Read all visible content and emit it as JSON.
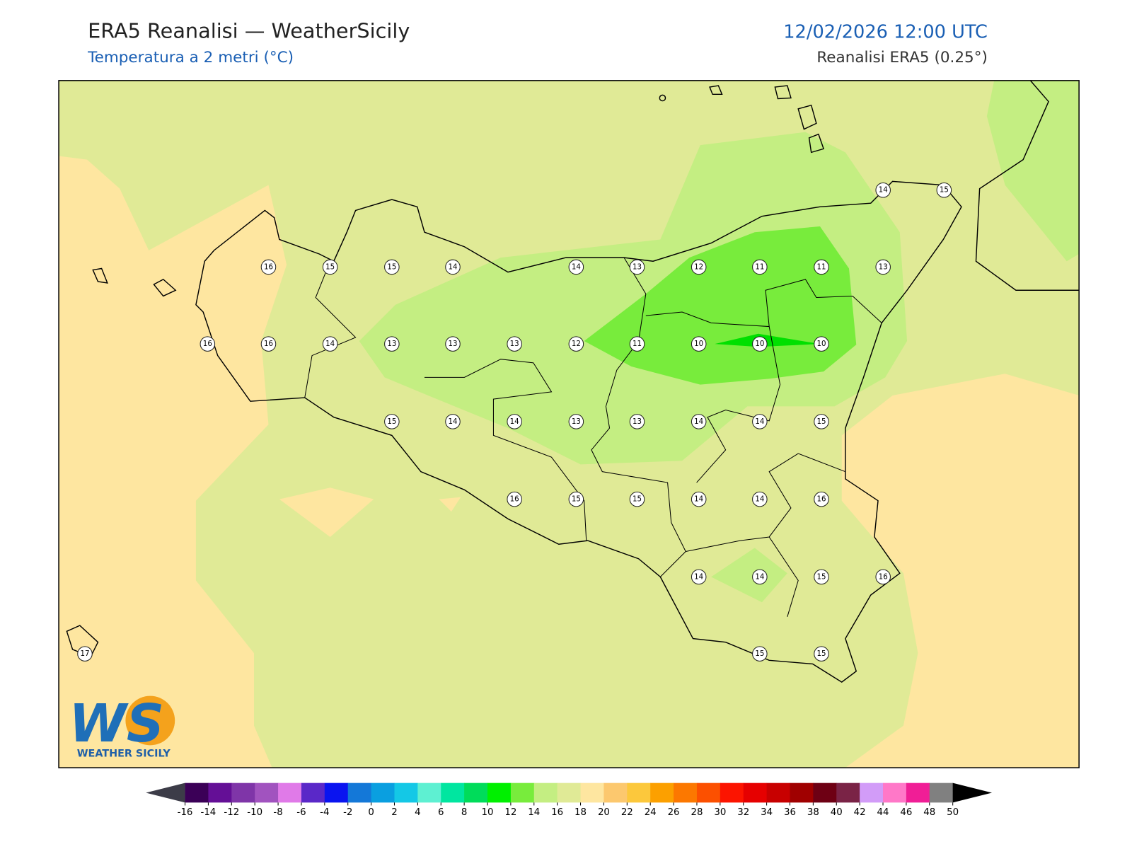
{
  "header": {
    "title": "ERA5 Reanalisi — WeatherSicily",
    "subtitle": "Temperatura a 2 metri (°C)",
    "datetime": "12/02/2026 12:00 UTC",
    "source": "Reanalisi ERA5 (0.25°)"
  },
  "stations": [
    16,
    15,
    15,
    14,
    14,
    13,
    12,
    11,
    11,
    13,
    16,
    16,
    14,
    13,
    13,
    13,
    12,
    11,
    10,
    10,
    10,
    15,
    14,
    14,
    13,
    13,
    14,
    14,
    15,
    16,
    15,
    15,
    14,
    14,
    16,
    14,
    14,
    15,
    16,
    15,
    15,
    14,
    15,
    17
  ],
  "colorbar": {
    "ticks": [
      -16,
      -14,
      -12,
      -10,
      -8,
      -6,
      -4,
      -2,
      0,
      2,
      4,
      6,
      8,
      10,
      12,
      14,
      16,
      18,
      20,
      22,
      24,
      26,
      28,
      30,
      32,
      34,
      36,
      38,
      40,
      42,
      44,
      46,
      48,
      50
    ],
    "colors": [
      "#3b0057",
      "#640f96",
      "#7f35a8",
      "#a153bf",
      "#e07ae8",
      "#5a28c8",
      "#0a14f0",
      "#1478d8",
      "#0a9fe0",
      "#14c8e6",
      "#5ef0d2",
      "#00e6a0",
      "#00dc5a",
      "#00f000",
      "#78ec3c",
      "#c4ee82",
      "#e0ea96",
      "#fee6a0",
      "#fcc86e",
      "#fcc83c",
      "#fca000",
      "#fc7800",
      "#fc5000",
      "#fc1400",
      "#e60000",
      "#c80000",
      "#a00000",
      "#6e0014",
      "#7a2346",
      "#d29cf8",
      "#ff78c8",
      "#f01e96",
      "#808080",
      "#3c3c3c"
    ]
  },
  "logo": {
    "mark": "WS",
    "text": "WEATHER SICILY"
  }
}
